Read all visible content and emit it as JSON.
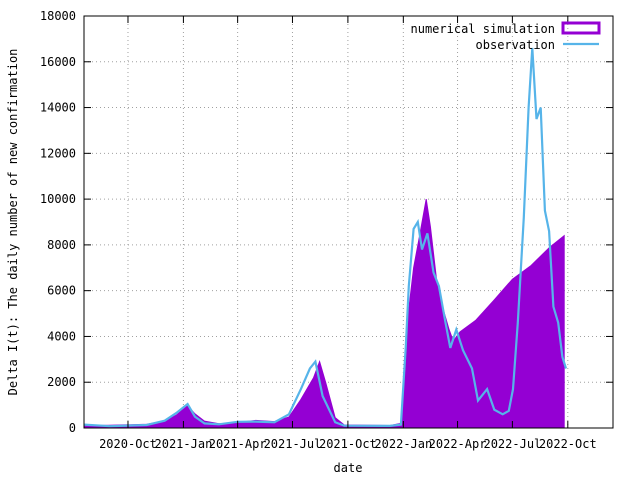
{
  "chart_data": {
    "type": "bar",
    "title": "",
    "xlabel": "date",
    "ylabel": "Delta I(t): The daily number of new confirmation",
    "ylim": [
      0,
      18000
    ],
    "yticks": [
      0,
      2000,
      4000,
      6000,
      8000,
      10000,
      12000,
      14000,
      16000,
      18000
    ],
    "xlim": [
      "2020-07-20",
      "2022-12-15"
    ],
    "xticks": [
      {
        "date": "2020-10-01",
        "label": "2020-Oct"
      },
      {
        "date": "2021-01-01",
        "label": "2021-Jan"
      },
      {
        "date": "2021-04-01",
        "label": "2021-Apr"
      },
      {
        "date": "2021-07-01",
        "label": "2021-Jul"
      },
      {
        "date": "2021-10-01",
        "label": "2021-Oct"
      },
      {
        "date": "2022-01-01",
        "label": "2022-Jan"
      },
      {
        "date": "2022-04-01",
        "label": "2022-Apr"
      },
      {
        "date": "2022-07-01",
        "label": "2022-Jul"
      },
      {
        "date": "2022-10-01",
        "label": "2022-Oct"
      }
    ],
    "grid": true,
    "legend_position": "top-right",
    "series": [
      {
        "name": "numerical simulation",
        "style": "filled-bars",
        "color": "#9400d3",
        "points": [
          [
            "2020-07-20",
            100
          ],
          [
            "2020-09-01",
            120
          ],
          [
            "2020-11-01",
            160
          ],
          [
            "2020-12-01",
            300
          ],
          [
            "2020-12-20",
            560
          ],
          [
            "2021-01-08",
            980
          ],
          [
            "2021-01-20",
            620
          ],
          [
            "2021-02-05",
            300
          ],
          [
            "2021-03-01",
            190
          ],
          [
            "2021-04-01",
            240
          ],
          [
            "2021-05-01",
            330
          ],
          [
            "2021-06-01",
            280
          ],
          [
            "2021-06-25",
            480
          ],
          [
            "2021-07-15",
            1250
          ],
          [
            "2021-08-05",
            2200
          ],
          [
            "2021-08-15",
            2900
          ],
          [
            "2021-08-25",
            2000
          ],
          [
            "2021-09-10",
            450
          ],
          [
            "2021-09-25",
            130
          ],
          [
            "2021-12-10",
            110
          ],
          [
            "2021-12-28",
            200
          ],
          [
            "2022-01-05",
            2600
          ],
          [
            "2022-01-10",
            5200
          ],
          [
            "2022-01-18",
            7000
          ],
          [
            "2022-01-28",
            8400
          ],
          [
            "2022-02-08",
            10000
          ],
          [
            "2022-02-15",
            8800
          ],
          [
            "2022-02-25",
            6500
          ],
          [
            "2022-03-08",
            5200
          ],
          [
            "2022-03-18",
            4300
          ],
          [
            "2022-03-25",
            3800
          ],
          [
            "2022-04-05",
            4200
          ],
          [
            "2022-05-01",
            4700
          ],
          [
            "2022-06-01",
            5600
          ],
          [
            "2022-07-01",
            6500
          ],
          [
            "2022-08-01",
            7100
          ],
          [
            "2022-09-01",
            7900
          ],
          [
            "2022-09-25",
            8400
          ]
        ]
      },
      {
        "name": "observation",
        "style": "line",
        "color": "#56b4e9",
        "points": [
          [
            "2020-07-20",
            150
          ],
          [
            "2020-09-01",
            80
          ],
          [
            "2020-11-01",
            130
          ],
          [
            "2020-12-01",
            320
          ],
          [
            "2020-12-20",
            650
          ],
          [
            "2021-01-08",
            1050
          ],
          [
            "2021-01-20",
            500
          ],
          [
            "2021-02-05",
            200
          ],
          [
            "2021-03-01",
            160
          ],
          [
            "2021-04-01",
            270
          ],
          [
            "2021-05-01",
            280
          ],
          [
            "2021-06-01",
            250
          ],
          [
            "2021-06-25",
            600
          ],
          [
            "2021-07-15",
            1700
          ],
          [
            "2021-07-30",
            2600
          ],
          [
            "2021-08-08",
            2900
          ],
          [
            "2021-08-20",
            1400
          ],
          [
            "2021-09-10",
            250
          ],
          [
            "2021-09-25",
            100
          ],
          [
            "2021-12-10",
            90
          ],
          [
            "2021-12-28",
            150
          ],
          [
            "2022-01-05",
            3500
          ],
          [
            "2022-01-10",
            6200
          ],
          [
            "2022-01-18",
            8700
          ],
          [
            "2022-01-25",
            9000
          ],
          [
            "2022-02-01",
            7800
          ],
          [
            "2022-02-10",
            8500
          ],
          [
            "2022-02-20",
            6800
          ],
          [
            "2022-03-01",
            6200
          ],
          [
            "2022-03-12",
            4600
          ],
          [
            "2022-03-20",
            3500
          ],
          [
            "2022-03-30",
            4300
          ],
          [
            "2022-04-10",
            3400
          ],
          [
            "2022-04-25",
            2600
          ],
          [
            "2022-05-05",
            1200
          ],
          [
            "2022-05-20",
            1700
          ],
          [
            "2022-06-01",
            800
          ],
          [
            "2022-06-15",
            600
          ],
          [
            "2022-06-25",
            750
          ],
          [
            "2022-07-02",
            1700
          ],
          [
            "2022-07-10",
            4600
          ],
          [
            "2022-07-20",
            9200
          ],
          [
            "2022-07-28",
            14000
          ],
          [
            "2022-08-03",
            16600
          ],
          [
            "2022-08-10",
            13500
          ],
          [
            "2022-08-17",
            14000
          ],
          [
            "2022-08-24",
            9500
          ],
          [
            "2022-08-31",
            8600
          ],
          [
            "2022-09-07",
            5300
          ],
          [
            "2022-09-15",
            4600
          ],
          [
            "2022-09-22",
            3100
          ],
          [
            "2022-09-28",
            2600
          ]
        ]
      }
    ]
  }
}
